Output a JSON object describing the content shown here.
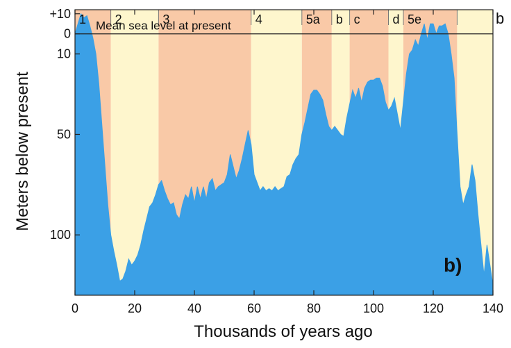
{
  "corner_label": "b",
  "chart_data": {
    "type": "area",
    "panel_label": "b)",
    "xlabel": "Thousands of years ago",
    "ylabel": "Meters below present",
    "xlim": [
      0,
      140
    ],
    "ylim": [
      -12,
      130
    ],
    "y_inverted": true,
    "x_ticks": [
      0,
      20,
      40,
      60,
      80,
      100,
      120,
      140
    ],
    "y_ticks": [
      {
        "value": -10,
        "label": "+10"
      },
      {
        "value": 0,
        "label": "0"
      },
      {
        "value": 10,
        "label": "10"
      },
      {
        "value": 50,
        "label": "50"
      },
      {
        "value": 100,
        "label": "100"
      }
    ],
    "reference_line": {
      "value": 0,
      "label": "Mean sea level at present"
    },
    "stages": [
      {
        "label": "1",
        "from": 0,
        "to": 12,
        "color": "#f9c9a7"
      },
      {
        "label": "2",
        "from": 12,
        "to": 28,
        "color": "#fef6cd"
      },
      {
        "label": "3",
        "from": 28,
        "to": 59,
        "color": "#f9c9a7"
      },
      {
        "label": "4",
        "from": 59,
        "to": 76,
        "color": "#fef6cd"
      },
      {
        "label": "5a",
        "from": 76,
        "to": 86,
        "color": "#f9c9a7"
      },
      {
        "label": "b",
        "from": 86,
        "to": 92,
        "color": "#fef6cd"
      },
      {
        "label": "c",
        "from": 92,
        "to": 105,
        "color": "#f9c9a7"
      },
      {
        "label": "d",
        "from": 105,
        "to": 110,
        "color": "#fef6cd"
      },
      {
        "label": "5e",
        "from": 110,
        "to": 128,
        "color": "#f9c9a7"
      },
      {
        "label": "",
        "from": 128,
        "to": 140,
        "color": "#fef6cd"
      }
    ],
    "fill_color": "#3ba0e6",
    "series": [
      {
        "x": [
          0,
          1,
          2,
          3,
          4,
          5,
          6,
          7,
          8,
          9,
          10,
          11,
          12,
          13,
          14,
          15,
          16,
          17,
          18,
          19,
          20,
          21,
          22,
          23,
          24,
          25,
          26,
          27,
          28,
          29,
          30,
          31,
          32,
          33,
          34,
          35,
          36,
          37,
          38,
          39,
          40,
          41,
          42,
          43,
          44,
          45,
          46,
          47,
          48,
          49,
          50,
          51,
          52,
          53,
          54,
          55,
          56,
          57,
          58,
          59,
          60,
          61,
          62,
          63,
          64,
          65,
          66,
          67,
          68,
          69,
          70,
          71,
          72,
          73,
          74,
          75,
          76,
          77,
          78,
          79,
          80,
          81,
          82,
          83,
          84,
          85,
          86,
          87,
          88,
          89,
          90,
          91,
          92,
          93,
          94,
          95,
          96,
          97,
          98,
          99,
          100,
          101,
          102,
          103,
          104,
          105,
          106,
          107,
          108,
          109,
          110,
          111,
          112,
          113,
          114,
          115,
          116,
          117,
          118,
          119,
          120,
          121,
          122,
          123,
          124,
          125,
          126,
          127,
          128,
          129,
          130,
          131,
          132,
          133,
          134,
          135,
          136,
          137,
          138,
          139,
          140
        ],
        "values": [
          0,
          -5,
          -10,
          -8,
          -9,
          -4,
          2,
          10,
          25,
          45,
          65,
          85,
          100,
          108,
          115,
          123,
          122,
          118,
          112,
          115,
          113,
          110,
          105,
          98,
          92,
          86,
          84,
          80,
          75,
          73,
          78,
          82,
          85,
          84,
          90,
          92,
          85,
          80,
          82,
          76,
          84,
          76,
          82,
          76,
          82,
          74,
          72,
          78,
          76,
          75,
          74,
          70,
          60,
          66,
          72,
          68,
          62,
          55,
          48,
          55,
          70,
          74,
          78,
          76,
          78,
          77,
          78,
          76,
          78,
          77,
          76,
          71,
          70,
          65,
          62,
          60,
          50,
          44,
          37,
          30,
          28,
          28,
          30,
          33,
          40,
          46,
          48,
          46,
          48,
          50,
          51,
          42,
          35,
          28,
          32,
          27,
          34,
          27,
          24,
          23,
          23,
          22,
          22,
          26,
          34,
          38,
          36,
          32,
          40,
          48,
          34,
          20,
          10,
          8,
          3,
          6,
          0,
          -5,
          3,
          -5,
          -5,
          0,
          -4,
          -4,
          -5,
          0,
          10,
          22,
          50,
          76,
          85,
          80,
          76,
          65,
          73,
          90,
          105,
          120,
          105,
          115,
          125
        ]
      }
    ]
  }
}
